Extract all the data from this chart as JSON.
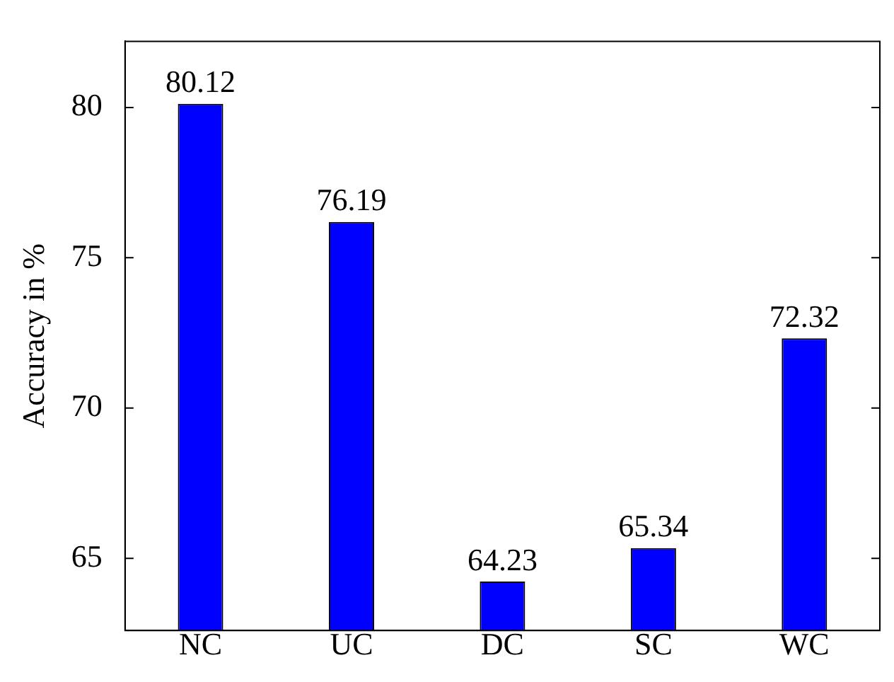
{
  "chart_data": {
    "type": "bar",
    "ylabel": "Accuracy in %",
    "categories": [
      "NC",
      "UC",
      "DC",
      "SC",
      "WC"
    ],
    "values": [
      80.12,
      76.19,
      64.23,
      65.34,
      72.32
    ],
    "color": "#0000ff",
    "ylim": [
      62.6,
      82.2
    ],
    "yticks": [
      65,
      70,
      75,
      80
    ],
    "grid": false,
    "legend": false,
    "data_labels": true
  }
}
